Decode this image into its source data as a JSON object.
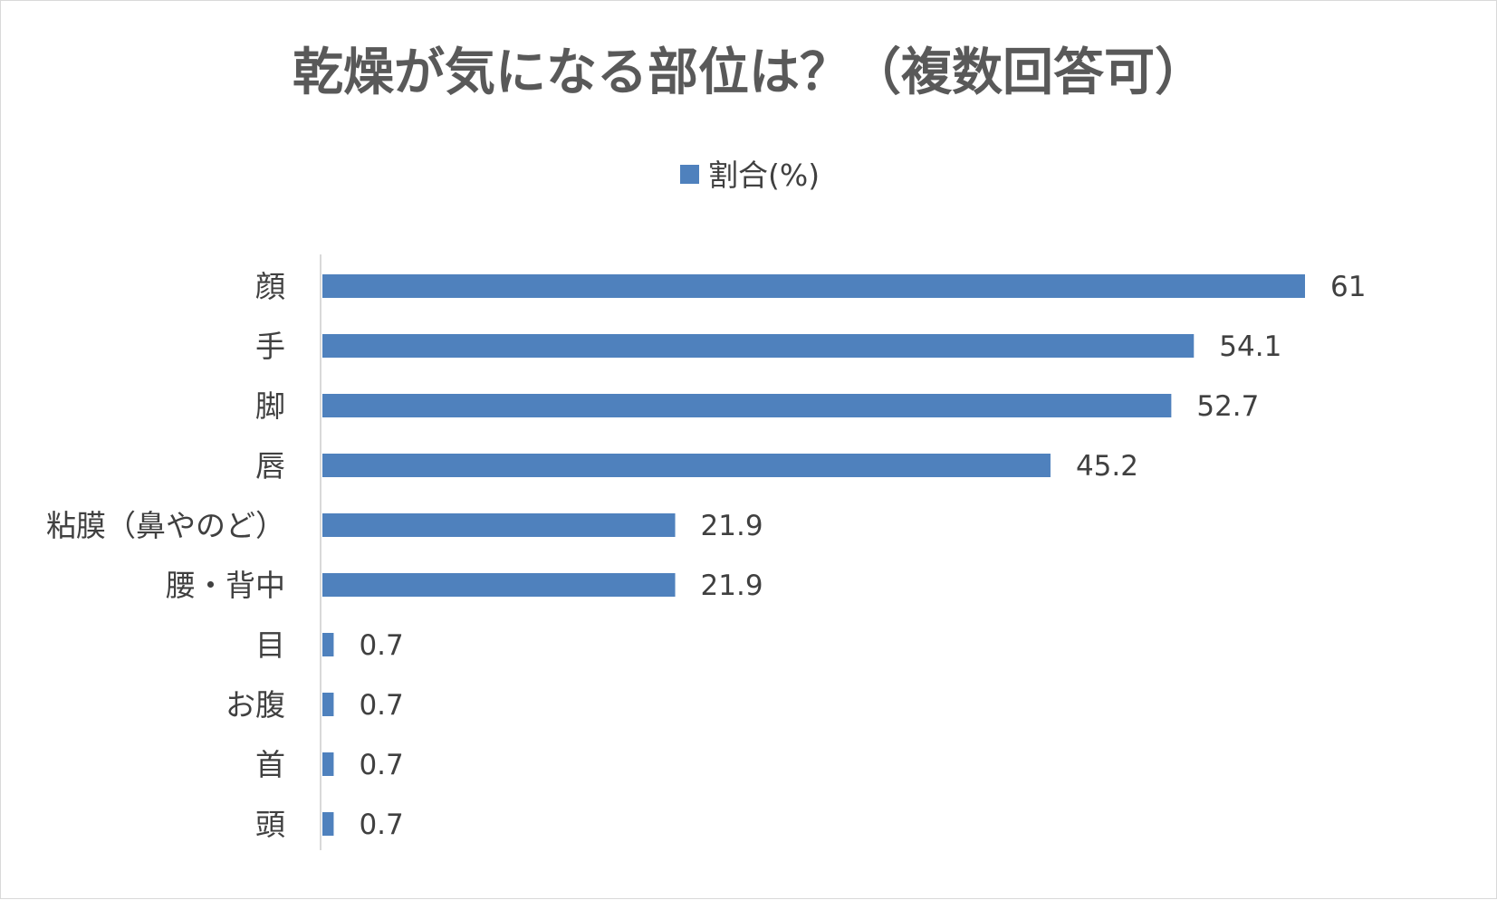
{
  "chart_data": {
    "type": "bar",
    "orientation": "horizontal",
    "title": "乾燥が気になる部位は？（複数回答可）",
    "legend_position": "top",
    "grid": false,
    "categories": [
      "顔",
      "手",
      "脚",
      "唇",
      "粘膜（鼻やのど）",
      "腰・背中",
      "目",
      "お腹",
      "首",
      "頭"
    ],
    "series": [
      {
        "name": "割合(%)",
        "color": "#4f81bd",
        "values": [
          61,
          54.1,
          52.7,
          45.2,
          21.9,
          21.9,
          0.7,
          0.7,
          0.7,
          0.7
        ],
        "value_labels": [
          "61",
          "54.1",
          "52.7",
          "45.2",
          "21.9",
          "21.9",
          "0.7",
          "0.7",
          "0.7",
          "0.7"
        ]
      }
    ],
    "xlim": [
      0,
      61
    ]
  }
}
